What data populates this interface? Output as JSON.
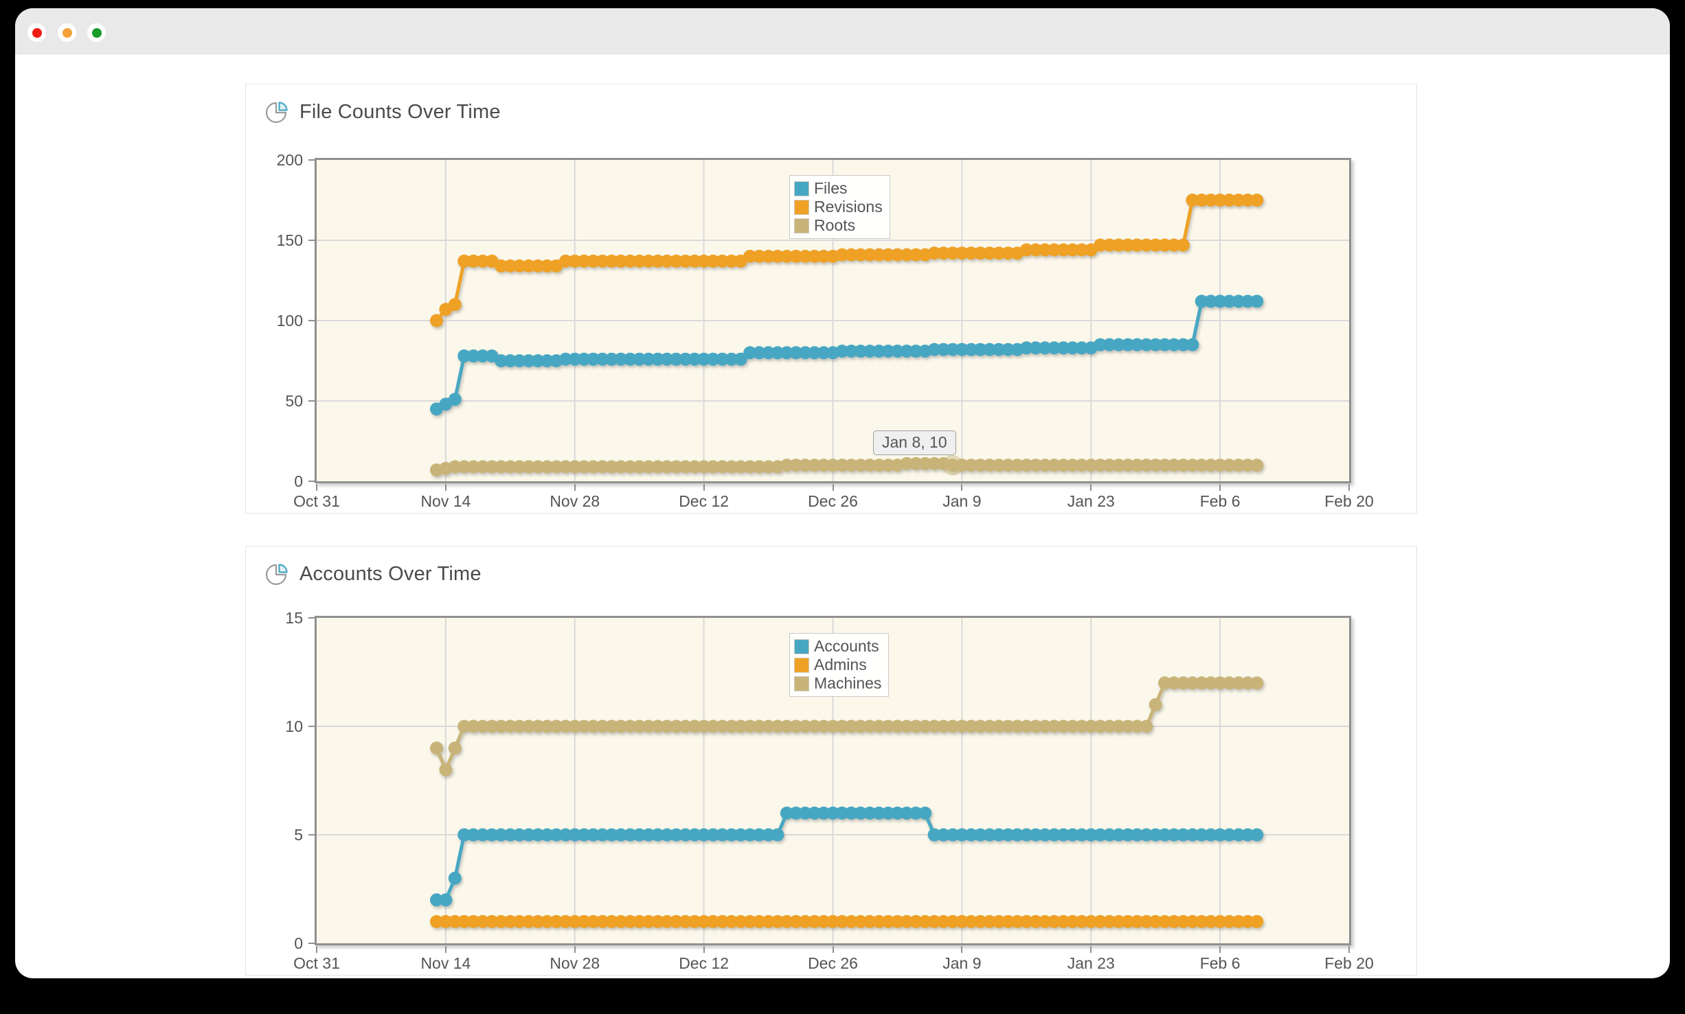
{
  "window": {
    "titlebar_color": "#e9e9e9",
    "traffic_lights": [
      {
        "name": "close",
        "color": "#f01c14"
      },
      {
        "name": "minimize",
        "color": "#f5a138"
      },
      {
        "name": "zoom",
        "color": "#189c2a"
      }
    ]
  },
  "colors": {
    "plot_background": "#fbf8eb",
    "grid_line": "#d9d9d9",
    "plot_frame": "#8f8f8f",
    "series_blue": "#47a7c3",
    "series_orange": "#efa125",
    "series_tan": "#c8b479"
  },
  "chart_data": [
    {
      "type": "line",
      "title": "File Counts Over Time",
      "icon": "pie-chart-icon",
      "grid": true,
      "legend_position": "top-center",
      "x_axis": {
        "tick_labels": [
          "Oct 31",
          "Nov 14",
          "Nov 28",
          "Dec 12",
          "Dec 26",
          "Jan 9",
          "Jan 23",
          "Feb 6",
          "Feb 20"
        ],
        "tick_day_offsets": [
          0,
          14,
          28,
          42,
          56,
          70,
          84,
          98,
          112
        ],
        "range_days": [
          0,
          112
        ]
      },
      "y_axis": {
        "ticks": [
          0,
          50,
          100,
          150,
          200
        ],
        "range": [
          0,
          200
        ]
      },
      "series_start_day_offset": 13,
      "series_start_label": "Nov 13",
      "series_end_label": "Feb 10",
      "series": [
        {
          "name": "Files",
          "color": "#47a7c3",
          "values": [
            45,
            48,
            51,
            78,
            78,
            78,
            78,
            75,
            75,
            75,
            75,
            75,
            75,
            75,
            76,
            76,
            76,
            76,
            76,
            76,
            76,
            76,
            76,
            76,
            76,
            76,
            76,
            76,
            76,
            76,
            76,
            76,
            76,
            76,
            80,
            80,
            80,
            80,
            80,
            80,
            80,
            80,
            80,
            80,
            81,
            81,
            81,
            81,
            81,
            81,
            81,
            81,
            81,
            81,
            82,
            82,
            82,
            82,
            82,
            82,
            82,
            82,
            82,
            82,
            83,
            83,
            83,
            83,
            83,
            83,
            83,
            83,
            85,
            85,
            85,
            85,
            85,
            85,
            85,
            85,
            85,
            85,
            85,
            112,
            112,
            112,
            112,
            112,
            112,
            112
          ]
        },
        {
          "name": "Revisions",
          "color": "#efa125",
          "values": [
            100,
            107,
            110,
            137,
            137,
            137,
            137,
            134,
            134,
            134,
            134,
            134,
            134,
            134,
            137,
            137,
            137,
            137,
            137,
            137,
            137,
            137,
            137,
            137,
            137,
            137,
            137,
            137,
            137,
            137,
            137,
            137,
            137,
            137,
            140,
            140,
            140,
            140,
            140,
            140,
            140,
            140,
            140,
            140,
            141,
            141,
            141,
            141,
            141,
            141,
            141,
            141,
            141,
            141,
            142,
            142,
            142,
            142,
            142,
            142,
            142,
            142,
            142,
            142,
            144,
            144,
            144,
            144,
            144,
            144,
            144,
            144,
            147,
            147,
            147,
            147,
            147,
            147,
            147,
            147,
            147,
            147,
            175,
            175,
            175,
            175,
            175,
            175,
            175,
            175
          ]
        },
        {
          "name": "Roots",
          "color": "#c8b479",
          "values": [
            7,
            8,
            9,
            9,
            9,
            9,
            9,
            9,
            9,
            9,
            9,
            9,
            9,
            9,
            9,
            9,
            9,
            9,
            9,
            9,
            9,
            9,
            9,
            9,
            9,
            9,
            9,
            9,
            9,
            9,
            9,
            9,
            9,
            9,
            9,
            9,
            9,
            9,
            10,
            10,
            10,
            10,
            10,
            10,
            10,
            10,
            10,
            10,
            10,
            10,
            10,
            11,
            11,
            11,
            11,
            11,
            10,
            10,
            10,
            10,
            10,
            10,
            10,
            10,
            10,
            10,
            10,
            10,
            10,
            10,
            10,
            10,
            10,
            10,
            10,
            10,
            10,
            10,
            10,
            10,
            10,
            10,
            10,
            10,
            10,
            10,
            10,
            10,
            10,
            10
          ]
        }
      ],
      "tooltip": {
        "text": "Jan 8, 10",
        "series": "Roots",
        "day_offset": 69,
        "value": 10
      }
    },
    {
      "type": "line",
      "title": "Accounts Over Time",
      "icon": "pie-chart-icon",
      "grid": true,
      "legend_position": "top-center",
      "x_axis": {
        "tick_labels": [
          "Oct 31",
          "Nov 14",
          "Nov 28",
          "Dec 12",
          "Dec 26",
          "Jan 9",
          "Jan 23",
          "Feb 6",
          "Feb 20"
        ],
        "tick_day_offsets": [
          0,
          14,
          28,
          42,
          56,
          70,
          84,
          98,
          112
        ],
        "range_days": [
          0,
          112
        ]
      },
      "y_axis": {
        "ticks": [
          0,
          5,
          10,
          15
        ],
        "range": [
          0,
          15
        ]
      },
      "series_start_day_offset": 13,
      "series_start_label": "Nov 13",
      "series_end_label": "Feb 10",
      "series": [
        {
          "name": "Accounts",
          "color": "#47a7c3",
          "values": [
            2,
            2,
            3,
            5,
            5,
            5,
            5,
            5,
            5,
            5,
            5,
            5,
            5,
            5,
            5,
            5,
            5,
            5,
            5,
            5,
            5,
            5,
            5,
            5,
            5,
            5,
            5,
            5,
            5,
            5,
            5,
            5,
            5,
            5,
            5,
            5,
            5,
            5,
            6,
            6,
            6,
            6,
            6,
            6,
            6,
            6,
            6,
            6,
            6,
            6,
            6,
            6,
            6,
            6,
            5,
            5,
            5,
            5,
            5,
            5,
            5,
            5,
            5,
            5,
            5,
            5,
            5,
            5,
            5,
            5,
            5,
            5,
            5,
            5,
            5,
            5,
            5,
            5,
            5,
            5,
            5,
            5,
            5,
            5,
            5,
            5,
            5,
            5,
            5,
            5
          ]
        },
        {
          "name": "Admins",
          "color": "#efa125",
          "values": [
            1,
            1,
            1,
            1,
            1,
            1,
            1,
            1,
            1,
            1,
            1,
            1,
            1,
            1,
            1,
            1,
            1,
            1,
            1,
            1,
            1,
            1,
            1,
            1,
            1,
            1,
            1,
            1,
            1,
            1,
            1,
            1,
            1,
            1,
            1,
            1,
            1,
            1,
            1,
            1,
            1,
            1,
            1,
            1,
            1,
            1,
            1,
            1,
            1,
            1,
            1,
            1,
            1,
            1,
            1,
            1,
            1,
            1,
            1,
            1,
            1,
            1,
            1,
            1,
            1,
            1,
            1,
            1,
            1,
            1,
            1,
            1,
            1,
            1,
            1,
            1,
            1,
            1,
            1,
            1,
            1,
            1,
            1,
            1,
            1,
            1,
            1,
            1,
            1,
            1
          ]
        },
        {
          "name": "Machines",
          "color": "#c8b479",
          "values": [
            9,
            8,
            9,
            10,
            10,
            10,
            10,
            10,
            10,
            10,
            10,
            10,
            10,
            10,
            10,
            10,
            10,
            10,
            10,
            10,
            10,
            10,
            10,
            10,
            10,
            10,
            10,
            10,
            10,
            10,
            10,
            10,
            10,
            10,
            10,
            10,
            10,
            10,
            10,
            10,
            10,
            10,
            10,
            10,
            10,
            10,
            10,
            10,
            10,
            10,
            10,
            10,
            10,
            10,
            10,
            10,
            10,
            10,
            10,
            10,
            10,
            10,
            10,
            10,
            10,
            10,
            10,
            10,
            10,
            10,
            10,
            10,
            10,
            10,
            10,
            10,
            10,
            10,
            11,
            12,
            12,
            12,
            12,
            12,
            12,
            12,
            12,
            12,
            12,
            12
          ]
        }
      ]
    }
  ]
}
